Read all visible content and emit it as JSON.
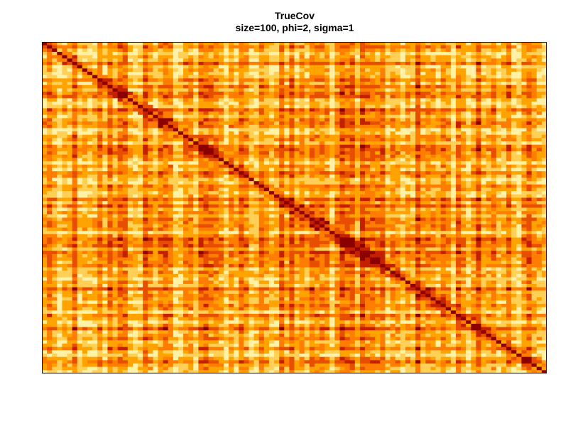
{
  "chart_data": {
    "type": "heatmap",
    "title": "TrueCov",
    "subtitle": "size=100, phi=2, sigma=1",
    "rows": 100,
    "cols": 100,
    "color_scale": [
      "#8b0000",
      "#c42000",
      "#e84e00",
      "#ff7d00",
      "#ffa300",
      "#ffd055",
      "#fff1a6"
    ],
    "diagonal_value": 1,
    "axes_shown": false,
    "grid": false,
    "legend": "none"
  }
}
